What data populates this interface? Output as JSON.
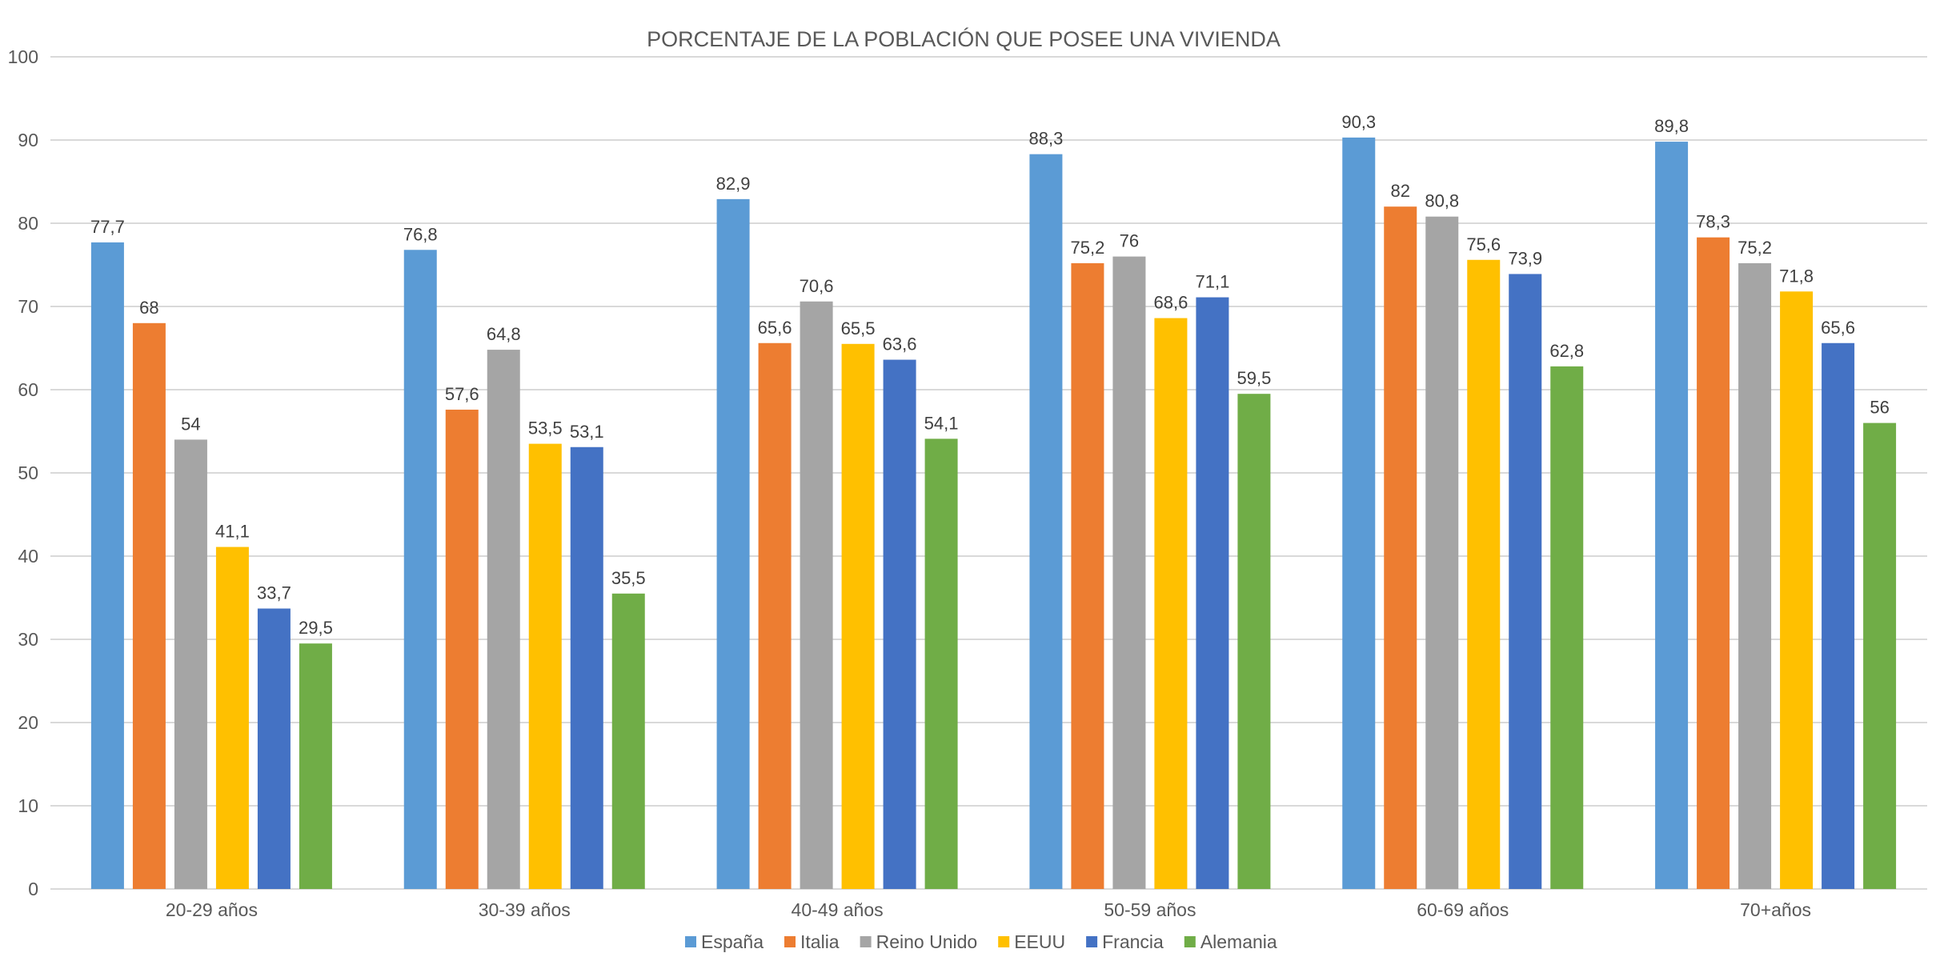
{
  "chart_data": {
    "type": "bar",
    "title": "PORCENTAJE DE LA POBLACIÓN QUE POSEE UNA VIVIENDA",
    "xlabel": "",
    "ylabel": "",
    "ylim": [
      0,
      100
    ],
    "yticks": [
      0,
      10,
      20,
      30,
      40,
      50,
      60,
      70,
      80,
      90,
      100
    ],
    "grid": true,
    "legend_position": "bottom",
    "categories": [
      "20-29 años",
      "30-39 años",
      "40-49 años",
      "50-59 años",
      "60-69 años",
      "70+años"
    ],
    "series": [
      {
        "name": "España",
        "color": "#5B9BD5",
        "values": [
          77.7,
          76.8,
          82.9,
          88.3,
          90.3,
          89.8
        ],
        "labels": [
          "77,7",
          "76,8",
          "82,9",
          "88,3",
          "90,3",
          "89,8"
        ]
      },
      {
        "name": "Italia",
        "color": "#ED7D31",
        "values": [
          68,
          57.6,
          65.6,
          75.2,
          82,
          78.3
        ],
        "labels": [
          "68",
          "57,6",
          "65,6",
          "75,2",
          "82",
          "78,3"
        ]
      },
      {
        "name": "Reino Unido",
        "color": "#A5A5A5",
        "values": [
          54,
          64.8,
          70.6,
          76,
          80.8,
          75.2
        ],
        "labels": [
          "54",
          "64,8",
          "70,6",
          "76",
          "80,8",
          "75,2"
        ]
      },
      {
        "name": "EEUU",
        "color": "#FFC000",
        "values": [
          41.1,
          53.5,
          65.5,
          68.6,
          75.6,
          71.8
        ],
        "labels": [
          "41,1",
          "53,5",
          "65,5",
          "68,6",
          "75,6",
          "71,8"
        ]
      },
      {
        "name": "Francia",
        "color": "#4472C4",
        "values": [
          33.7,
          53.1,
          63.6,
          71.1,
          73.9,
          65.6
        ],
        "labels": [
          "33,7",
          "53,1",
          "63,6",
          "71,1",
          "73,9",
          "65,6"
        ]
      },
      {
        "name": "Alemania",
        "color": "#70AD47",
        "values": [
          29.5,
          35.5,
          54.1,
          59.5,
          62.8,
          56
        ],
        "labels": [
          "29,5",
          "35,5",
          "54,1",
          "59,5",
          "62,8",
          "56"
        ]
      }
    ]
  }
}
